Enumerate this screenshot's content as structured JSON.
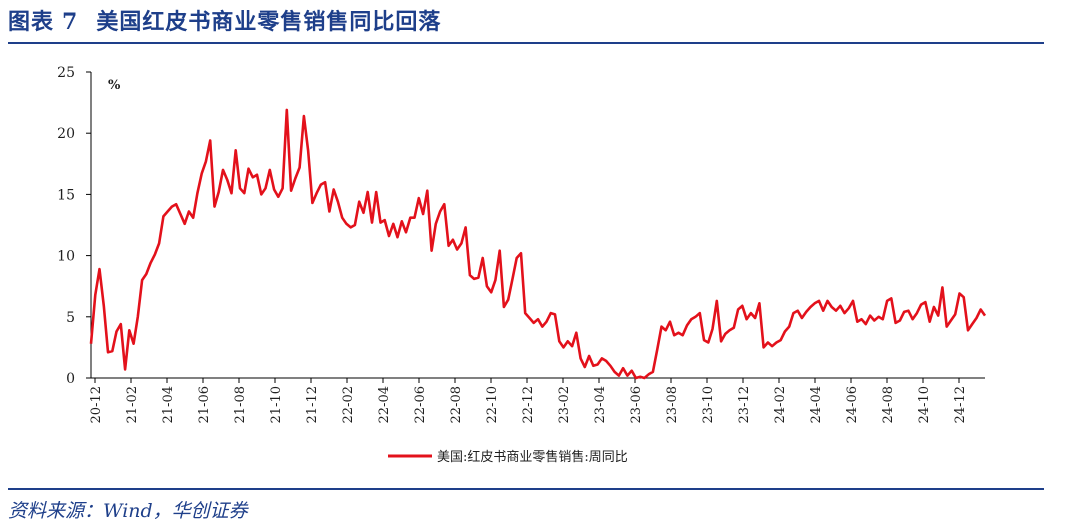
{
  "figure": {
    "label": "图表",
    "number": "7",
    "title": "美国红皮书商业零售销售同比回落",
    "source": "资料来源：Wind，华创证券"
  },
  "chart_data": {
    "type": "line",
    "unit": "%",
    "ylim": [
      0,
      25
    ],
    "yticks": [
      0,
      5,
      10,
      15,
      20,
      25
    ],
    "grid": false,
    "legend_position": "bottom-center",
    "xtick_labels": [
      "20-12",
      "21-02",
      "21-04",
      "21-06",
      "21-08",
      "21-10",
      "21-12",
      "22-02",
      "22-04",
      "22-06",
      "22-08",
      "22-10",
      "22-12",
      "23-02",
      "23-04",
      "23-06",
      "23-08",
      "23-10",
      "23-12",
      "24-02",
      "24-04",
      "24-06",
      "24-08",
      "24-10",
      "24-12"
    ],
    "series": [
      {
        "name": "美国:红皮书商业零售销售:周同比",
        "color": "#e3111b",
        "values": [
          2.8,
          6.8,
          8.9,
          5.9,
          2.1,
          2.2,
          3.8,
          4.4,
          0.7,
          3.9,
          2.8,
          5.0,
          8.0,
          8.5,
          9.4,
          10.1,
          11.0,
          13.2,
          13.6,
          14.0,
          14.2,
          13.4,
          12.6,
          13.6,
          13.1,
          15.1,
          16.7,
          17.7,
          19.4,
          14.0,
          15.2,
          17.0,
          16.2,
          15.1,
          18.6,
          15.5,
          15.1,
          17.1,
          16.4,
          16.6,
          15.0,
          15.5,
          17.0,
          15.4,
          14.8,
          15.5,
          21.9,
          15.3,
          16.3,
          17.2,
          21.4,
          18.6,
          14.3,
          15.1,
          15.8,
          16.0,
          13.6,
          15.4,
          14.4,
          13.1,
          12.6,
          12.3,
          12.5,
          14.4,
          13.5,
          15.2,
          12.7,
          15.2,
          12.7,
          12.9,
          11.6,
          12.6,
          11.5,
          12.8,
          11.9,
          13.1,
          13.1,
          14.7,
          13.4,
          15.3,
          10.4,
          12.6,
          13.6,
          14.2,
          10.8,
          11.3,
          10.5,
          11.0,
          12.3,
          8.4,
          8.1,
          8.2,
          9.8,
          7.5,
          7.0,
          8.0,
          10.4,
          5.8,
          6.4,
          8.1,
          9.8,
          10.2,
          5.3,
          4.9,
          4.5,
          4.8,
          4.2,
          4.6,
          5.3,
          5.2,
          3.0,
          2.5,
          3.0,
          2.6,
          3.7,
          1.6,
          0.9,
          1.8,
          1.0,
          1.1,
          1.6,
          1.4,
          1.0,
          0.5,
          0.2,
          0.8,
          0.2,
          0.6,
          0.0,
          0.1,
          0.0,
          0.3,
          0.5,
          2.3,
          4.2,
          3.9,
          4.6,
          3.5,
          3.7,
          3.5,
          4.3,
          4.8,
          5.0,
          5.3,
          3.1,
          2.9,
          4.0,
          6.3,
          3.0,
          3.6,
          3.9,
          4.1,
          5.6,
          5.9,
          4.8,
          5.3,
          4.9,
          6.1,
          2.5,
          2.9,
          2.6,
          2.9,
          3.1,
          3.8,
          4.2,
          5.3,
          5.5,
          4.9,
          5.4,
          5.8,
          6.1,
          6.3,
          5.5,
          6.3,
          5.8,
          5.5,
          5.9,
          5.3,
          5.7,
          6.3,
          4.6,
          4.8,
          4.4,
          5.1,
          4.7,
          5.0,
          4.8,
          6.3,
          6.5,
          4.5,
          4.7,
          5.4,
          5.5,
          4.8,
          5.3,
          6.0,
          6.2,
          4.6,
          5.8,
          5.1,
          7.4,
          4.2,
          4.7,
          5.2,
          6.9,
          6.6,
          3.9,
          4.4,
          4.9,
          5.6,
          5.1
        ]
      }
    ]
  }
}
